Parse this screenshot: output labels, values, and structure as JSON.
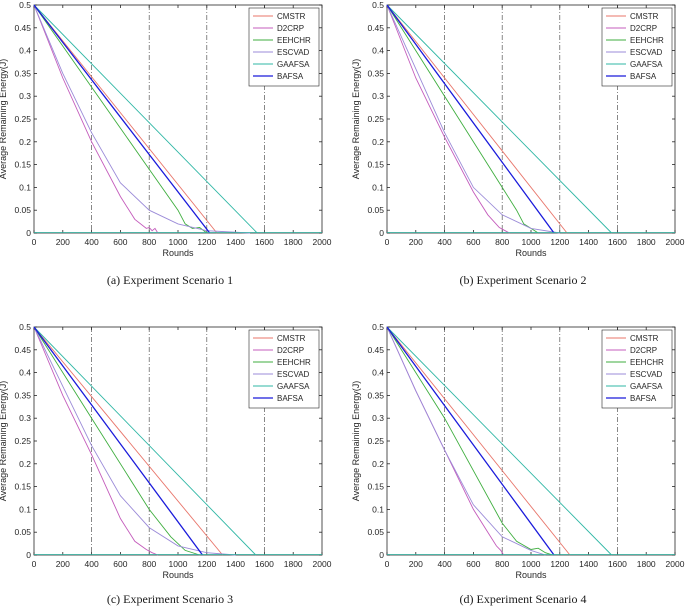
{
  "chart_data": [
    {
      "type": "line",
      "caption": "(a)  Experiment Scenario 1",
      "xlabel": "Rounds",
      "ylabel": "Average Remaining Energy(J)",
      "xlim": [
        0,
        2000
      ],
      "ylim": [
        0,
        0.5
      ],
      "xticks": [
        "0",
        "200",
        "400",
        "600",
        "800",
        "1000",
        "1200",
        "1400",
        "1600",
        "1800",
        "2000"
      ],
      "yticks": [
        "0",
        "0.05",
        "0.1",
        "0.15",
        "0.2",
        "0.25",
        "0.3",
        "0.35",
        "0.4",
        "0.45",
        "0.5"
      ],
      "vlines": [
        400,
        800,
        1200,
        1600
      ],
      "legend_position": "top-right",
      "series": [
        {
          "name": "CMSTR",
          "color": "#e8756a",
          "points": [
            [
              0,
              0.5
            ],
            [
              1270,
              0
            ]
          ]
        },
        {
          "name": "D2CRP",
          "color": "#c45cbc",
          "points": [
            [
              0,
              0.5
            ],
            [
              200,
              0.34
            ],
            [
              400,
              0.2
            ],
            [
              600,
              0.08
            ],
            [
              700,
              0.03
            ],
            [
              780,
              0.01
            ],
            [
              800,
              0.012
            ],
            [
              820,
              0.005
            ],
            [
              840,
              0.01
            ],
            [
              860,
              0
            ]
          ]
        },
        {
          "name": "EEHCHR",
          "color": "#3fae3f",
          "points": [
            [
              0,
              0.5
            ],
            [
              400,
              0.32
            ],
            [
              800,
              0.14
            ],
            [
              1000,
              0.05
            ],
            [
              1050,
              0.02
            ],
            [
              1100,
              0.01
            ],
            [
              1150,
              0.012
            ],
            [
              1200,
              0
            ]
          ]
        },
        {
          "name": "ESCVAD",
          "color": "#9b8bd8",
          "points": [
            [
              0,
              0.5
            ],
            [
              200,
              0.35
            ],
            [
              400,
              0.22
            ],
            [
              600,
              0.11
            ],
            [
              800,
              0.05
            ],
            [
              1000,
              0.02
            ],
            [
              1200,
              0.005
            ],
            [
              1500,
              0
            ]
          ]
        },
        {
          "name": "GAAFSA",
          "color": "#2fb7a5",
          "points": [
            [
              0,
              0.5
            ],
            [
              1550,
              0
            ]
          ]
        },
        {
          "name": "BAFSA",
          "color": "#1a1adb",
          "points": [
            [
              0,
              0.5
            ],
            [
              1220,
              0
            ]
          ]
        }
      ]
    },
    {
      "type": "line",
      "caption": "(b)  Experiment Scenario 2",
      "xlabel": "Rounds",
      "ylabel": "Average Remaining Energy(J)",
      "xlim": [
        0,
        2000
      ],
      "ylim": [
        0,
        0.5
      ],
      "xticks": [
        "0",
        "200",
        "400",
        "600",
        "800",
        "1000",
        "1200",
        "1400",
        "1600",
        "1800",
        "2000"
      ],
      "yticks": [
        "0",
        "0.05",
        "0.1",
        "0.15",
        "0.2",
        "0.25",
        "0.3",
        "0.35",
        "0.4",
        "0.45",
        "0.5"
      ],
      "vlines": [
        400,
        800,
        1200,
        1600
      ],
      "legend_position": "top-right",
      "series": [
        {
          "name": "CMSTR",
          "color": "#e8756a",
          "points": [
            [
              0,
              0.5
            ],
            [
              1250,
              0
            ]
          ]
        },
        {
          "name": "D2CRP",
          "color": "#c45cbc",
          "points": [
            [
              0,
              0.5
            ],
            [
              200,
              0.34
            ],
            [
              400,
              0.21
            ],
            [
              600,
              0.09
            ],
            [
              700,
              0.04
            ],
            [
              780,
              0.012
            ],
            [
              820,
              0.005
            ],
            [
              850,
              0
            ]
          ]
        },
        {
          "name": "EEHCHR",
          "color": "#3fae3f",
          "points": [
            [
              0,
              0.5
            ],
            [
              400,
              0.3
            ],
            [
              800,
              0.1
            ],
            [
              900,
              0.05
            ],
            [
              950,
              0.02
            ],
            [
              1000,
              0.01
            ],
            [
              1050,
              0
            ]
          ]
        },
        {
          "name": "ESCVAD",
          "color": "#9b8bd8",
          "points": [
            [
              0,
              0.5
            ],
            [
              200,
              0.36
            ],
            [
              400,
              0.22
            ],
            [
              600,
              0.1
            ],
            [
              800,
              0.04
            ],
            [
              1000,
              0.01
            ],
            [
              1200,
              0
            ]
          ]
        },
        {
          "name": "GAAFSA",
          "color": "#2fb7a5",
          "points": [
            [
              0,
              0.5
            ],
            [
              1560,
              0
            ]
          ]
        },
        {
          "name": "BAFSA",
          "color": "#1a1adb",
          "points": [
            [
              0,
              0.5
            ],
            [
              1160,
              0
            ]
          ]
        }
      ]
    },
    {
      "type": "line",
      "caption": "(c)  Experiment Scenario 3",
      "xlabel": "Rounds",
      "ylabel": "Average Remaining Energy(J)",
      "xlim": [
        0,
        2000
      ],
      "ylim": [
        0,
        0.5
      ],
      "xticks": [
        "0",
        "200",
        "400",
        "600",
        "800",
        "1000",
        "1200",
        "1400",
        "1600",
        "1800",
        "2000"
      ],
      "yticks": [
        "0",
        "0.05",
        "0.1",
        "0.15",
        "0.2",
        "0.25",
        "0.3",
        "0.35",
        "0.4",
        "0.45",
        "0.5"
      ],
      "vlines": [
        400,
        800,
        1200,
        1600
      ],
      "legend_position": "top-right",
      "series": [
        {
          "name": "CMSTR",
          "color": "#e8756a",
          "points": [
            [
              0,
              0.5
            ],
            [
              1310,
              0
            ]
          ]
        },
        {
          "name": "D2CRP",
          "color": "#c45cbc",
          "points": [
            [
              0,
              0.5
            ],
            [
              200,
              0.35
            ],
            [
              400,
              0.22
            ],
            [
              600,
              0.08
            ],
            [
              700,
              0.03
            ],
            [
              780,
              0.012
            ],
            [
              820,
              0.005
            ],
            [
              860,
              0
            ]
          ]
        },
        {
          "name": "EEHCHR",
          "color": "#3fae3f",
          "points": [
            [
              0,
              0.5
            ],
            [
              400,
              0.3
            ],
            [
              800,
              0.1
            ],
            [
              950,
              0.04
            ],
            [
              1050,
              0.01
            ],
            [
              1150,
              0
            ]
          ]
        },
        {
          "name": "ESCVAD",
          "color": "#9b8bd8",
          "points": [
            [
              0,
              0.5
            ],
            [
              200,
              0.37
            ],
            [
              400,
              0.24
            ],
            [
              600,
              0.13
            ],
            [
              800,
              0.06
            ],
            [
              1000,
              0.02
            ],
            [
              1200,
              0.005
            ],
            [
              1400,
              0
            ]
          ]
        },
        {
          "name": "GAAFSA",
          "color": "#2fb7a5",
          "points": [
            [
              0,
              0.5
            ],
            [
              1540,
              0
            ]
          ]
        },
        {
          "name": "BAFSA",
          "color": "#1a1adb",
          "points": [
            [
              0,
              0.5
            ],
            [
              1170,
              0
            ]
          ]
        }
      ]
    },
    {
      "type": "line",
      "caption": "(d)  Experiment Scenario 4",
      "xlabel": "Rounds",
      "ylabel": "Average Remaining Energy(J)",
      "xlim": [
        0,
        2000
      ],
      "ylim": [
        0,
        0.5
      ],
      "xticks": [
        "0",
        "200",
        "400",
        "600",
        "800",
        "1000",
        "1200",
        "1400",
        "1600",
        "1800",
        "2000"
      ],
      "yticks": [
        "0",
        "0.05",
        "0.1",
        "0.15",
        "0.2",
        "0.25",
        "0.3",
        "0.35",
        "0.4",
        "0.45",
        "0.5"
      ],
      "vlines": [
        400,
        800,
        1200,
        1600
      ],
      "legend_position": "top-right",
      "series": [
        {
          "name": "CMSTR",
          "color": "#e8756a",
          "points": [
            [
              0,
              0.5
            ],
            [
              1270,
              0
            ]
          ]
        },
        {
          "name": "D2CRP",
          "color": "#c45cbc",
          "points": [
            [
              0,
              0.5
            ],
            [
              200,
              0.36
            ],
            [
              400,
              0.23
            ],
            [
              600,
              0.1
            ],
            [
              700,
              0.05
            ],
            [
              760,
              0.02
            ],
            [
              790,
              0.01
            ],
            [
              810,
              0
            ]
          ]
        },
        {
          "name": "EEHCHR",
          "color": "#3fae3f",
          "points": [
            [
              0,
              0.5
            ],
            [
              400,
              0.3
            ],
            [
              800,
              0.07
            ],
            [
              900,
              0.03
            ],
            [
              1000,
              0.012
            ],
            [
              1050,
              0.015
            ],
            [
              1100,
              0.005
            ],
            [
              1150,
              0
            ]
          ]
        },
        {
          "name": "ESCVAD",
          "color": "#9b8bd8",
          "points": [
            [
              0,
              0.5
            ],
            [
              200,
              0.36
            ],
            [
              400,
              0.23
            ],
            [
              600,
              0.11
            ],
            [
              800,
              0.04
            ],
            [
              1000,
              0.01
            ],
            [
              1100,
              0
            ]
          ]
        },
        {
          "name": "GAAFSA",
          "color": "#2fb7a5",
          "points": [
            [
              0,
              0.5
            ],
            [
              1560,
              0
            ]
          ]
        },
        {
          "name": "BAFSA",
          "color": "#1a1adb",
          "points": [
            [
              0,
              0.5
            ],
            [
              1160,
              0
            ]
          ]
        }
      ]
    }
  ]
}
